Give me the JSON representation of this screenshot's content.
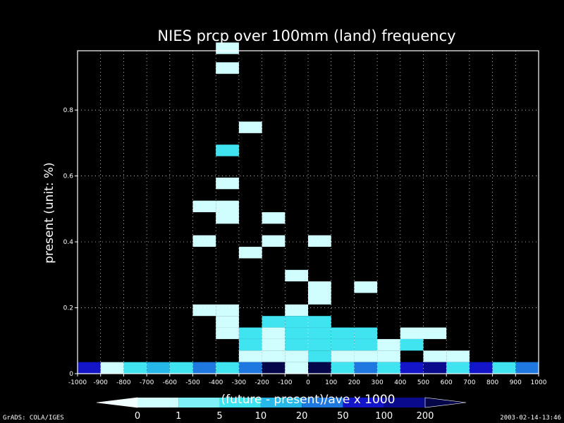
{
  "chart_data": {
    "type": "heatmap",
    "title": "NIES  prcp over 100mm (land)  frequency",
    "xlabel": "(future - present)/ave   x 1000",
    "ylabel": "present (unit: %)",
    "xlim": [
      -1000,
      1000
    ],
    "ylim": [
      0,
      0.98
    ],
    "x_ticks": [
      "-1000",
      "-900",
      "-800",
      "-700",
      "-600",
      "-500",
      "-400",
      "-300",
      "-200",
      "-100",
      "0",
      "100",
      "200",
      "300",
      "400",
      "500",
      "600",
      "700",
      "800",
      "900",
      "1000"
    ],
    "y_ticks": [
      "0",
      "0.2",
      "0.4",
      "0.6",
      "0.8"
    ],
    "grid": true,
    "cell_size": {
      "x": 100,
      "y": 0.035
    },
    "colorbar": {
      "labels": [
        "0",
        "1",
        "5",
        "10",
        "20",
        "50",
        "100",
        "200"
      ],
      "colors": [
        "#f0ffff",
        "#d0fdfd",
        "#7ff0f8",
        "#40e4f0",
        "#26b8e8",
        "#1e78e0",
        "#1414c8",
        "#0a0a8c",
        "#05054a"
      ]
    },
    "cells": [
      {
        "x": -400,
        "y": 0.97,
        "level": 1
      },
      {
        "x": -400,
        "y": 0.91,
        "level": 1
      },
      {
        "x": -300,
        "y": 0.73,
        "level": 1
      },
      {
        "x": -400,
        "y": 0.66,
        "level": 3
      },
      {
        "x": -400,
        "y": 0.56,
        "level": 1
      },
      {
        "x": -500,
        "y": 0.49,
        "level": 1
      },
      {
        "x": -400,
        "y": 0.49,
        "level": 1
      },
      {
        "x": -400,
        "y": 0.455,
        "level": 1
      },
      {
        "x": -200,
        "y": 0.455,
        "level": 1
      },
      {
        "x": -500,
        "y": 0.385,
        "level": 1
      },
      {
        "x": -200,
        "y": 0.385,
        "level": 1
      },
      {
        "x": 0,
        "y": 0.385,
        "level": 1
      },
      {
        "x": -300,
        "y": 0.35,
        "level": 1
      },
      {
        "x": -100,
        "y": 0.28,
        "level": 1
      },
      {
        "x": 0,
        "y": 0.245,
        "level": 1
      },
      {
        "x": 200,
        "y": 0.245,
        "level": 1
      },
      {
        "x": 0,
        "y": 0.21,
        "level": 1
      },
      {
        "x": -500,
        "y": 0.175,
        "level": 1
      },
      {
        "x": -400,
        "y": 0.175,
        "level": 1
      },
      {
        "x": -100,
        "y": 0.175,
        "level": 1
      },
      {
        "x": -400,
        "y": 0.14,
        "level": 1
      },
      {
        "x": -200,
        "y": 0.14,
        "level": 3
      },
      {
        "x": -100,
        "y": 0.14,
        "level": 3
      },
      {
        "x": 0,
        "y": 0.14,
        "level": 3
      },
      {
        "x": -400,
        "y": 0.105,
        "level": 1
      },
      {
        "x": -300,
        "y": 0.105,
        "level": 3
      },
      {
        "x": -200,
        "y": 0.105,
        "level": 1
      },
      {
        "x": -100,
        "y": 0.105,
        "level": 3
      },
      {
        "x": 0,
        "y": 0.105,
        "level": 3
      },
      {
        "x": 100,
        "y": 0.105,
        "level": 3
      },
      {
        "x": 200,
        "y": 0.105,
        "level": 3
      },
      {
        "x": 400,
        "y": 0.105,
        "level": 1
      },
      {
        "x": 500,
        "y": 0.105,
        "level": 1
      },
      {
        "x": -300,
        "y": 0.07,
        "level": 3
      },
      {
        "x": -200,
        "y": 0.07,
        "level": 1
      },
      {
        "x": -100,
        "y": 0.07,
        "level": 3
      },
      {
        "x": 0,
        "y": 0.07,
        "level": 3
      },
      {
        "x": 100,
        "y": 0.07,
        "level": 3
      },
      {
        "x": 200,
        "y": 0.07,
        "level": 3
      },
      {
        "x": 300,
        "y": 0.07,
        "level": 1
      },
      {
        "x": 400,
        "y": 0.07,
        "level": 3
      },
      {
        "x": -300,
        "y": 0.035,
        "level": 1
      },
      {
        "x": -200,
        "y": 0.035,
        "level": 1
      },
      {
        "x": -100,
        "y": 0.035,
        "level": 1
      },
      {
        "x": 0,
        "y": 0.035,
        "level": 3
      },
      {
        "x": 100,
        "y": 0.035,
        "level": 1
      },
      {
        "x": 200,
        "y": 0.035,
        "level": 1
      },
      {
        "x": 300,
        "y": 0.035,
        "level": 1
      },
      {
        "x": 500,
        "y": 0.035,
        "level": 1
      },
      {
        "x": 600,
        "y": 0.035,
        "level": 1
      },
      {
        "x": -1000,
        "y": 0.0,
        "level": 6
      },
      {
        "x": -900,
        "y": 0.0,
        "level": 1
      },
      {
        "x": -800,
        "y": 0.0,
        "level": 3
      },
      {
        "x": -700,
        "y": 0.0,
        "level": 4
      },
      {
        "x": -600,
        "y": 0.0,
        "level": 3
      },
      {
        "x": -500,
        "y": 0.0,
        "level": 5
      },
      {
        "x": -400,
        "y": 0.0,
        "level": 3
      },
      {
        "x": -300,
        "y": 0.0,
        "level": 5
      },
      {
        "x": -200,
        "y": 0.0,
        "level": 8
      },
      {
        "x": -100,
        "y": 0.0,
        "level": 1
      },
      {
        "x": 0,
        "y": 0.0,
        "level": 8
      },
      {
        "x": 100,
        "y": 0.0,
        "level": 3
      },
      {
        "x": 200,
        "y": 0.0,
        "level": 5
      },
      {
        "x": 300,
        "y": 0.0,
        "level": 3
      },
      {
        "x": 400,
        "y": 0.0,
        "level": 6
      },
      {
        "x": 500,
        "y": 0.0,
        "level": 7
      },
      {
        "x": 600,
        "y": 0.0,
        "level": 3
      },
      {
        "x": 700,
        "y": 0.0,
        "level": 6
      },
      {
        "x": 800,
        "y": 0.0,
        "level": 3
      },
      {
        "x": 900,
        "y": 0.0,
        "level": 5
      }
    ]
  },
  "footer": {
    "left": "GrADS: COLA/IGES",
    "right": "2003-02-14-13:46"
  }
}
